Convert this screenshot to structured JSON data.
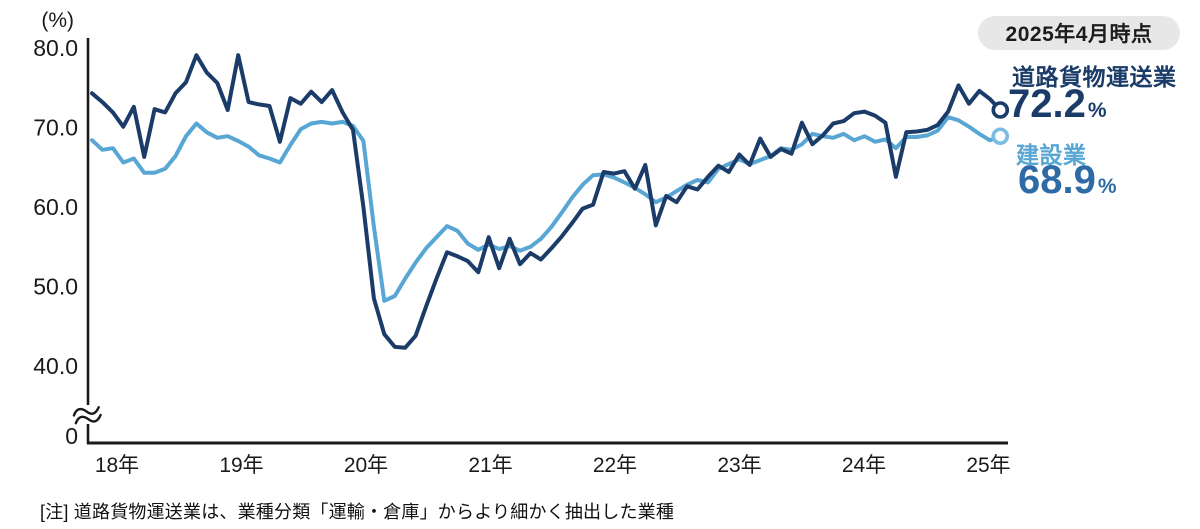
{
  "header": {
    "badge": "2025年4月時点"
  },
  "y_axis_unit": "(%)",
  "legend": [
    {
      "label": "道路貨物運送業",
      "value": "72.2",
      "unit": "%"
    },
    {
      "label": "建設業",
      "value": "68.9",
      "unit": "%"
    }
  ],
  "note": {
    "text": "[注] 道路貨物運送業は、業種分類「運輸・倉庫」からより細かく抽出した業種"
  },
  "colors": {
    "series1": "#1b3c68",
    "series2": "#58a6d4",
    "series2_ring": "#7bbde2",
    "axis": "#1a1a1a",
    "badge_bg": "#e7e7e7"
  },
  "chart_data": {
    "type": "line",
    "title": "",
    "unit": "%",
    "x_interval": "monthly",
    "x_start": "2018-01",
    "x_end": "2025-04",
    "x_tick_labels": [
      "18年",
      "19年",
      "20年",
      "21年",
      "22年",
      "23年",
      "24年",
      "25年"
    ],
    "y_ticks": [
      80.0,
      70.0,
      60.0,
      50.0,
      40.0
    ],
    "y_zero_label": "0",
    "y_axis_break": true,
    "ylim_visible": [
      40,
      80
    ],
    "grid": false,
    "legend_position": "right-of-line-ends",
    "series": [
      {
        "name": "道路貨物運送業",
        "color": "#1b3c68",
        "end_value": 72.2,
        "end_marker": true,
        "values": [
          74.3,
          73.2,
          71.9,
          70.1,
          72.6,
          66.3,
          72.3,
          71.9,
          74.3,
          75.7,
          79.1,
          76.9,
          75.6,
          72.2,
          79.1,
          73.2,
          72.9,
          72.7,
          68.2,
          73.7,
          73.0,
          74.5,
          73.2,
          74.7,
          71.9,
          69.7,
          60.0,
          48.5,
          44.0,
          42.4,
          42.3,
          43.8,
          47.5,
          51.0,
          54.3,
          53.8,
          53.2,
          51.8,
          56.2,
          52.3,
          56.0,
          52.8,
          54.2,
          53.4,
          54.8,
          56.3,
          58.0,
          59.8,
          60.3,
          64.4,
          64.2,
          64.5,
          62.3,
          65.3,
          57.7,
          61.4,
          60.6,
          62.6,
          62.2,
          63.8,
          65.2,
          64.4,
          66.6,
          65.3,
          68.6,
          66.3,
          67.3,
          66.7,
          70.6,
          67.9,
          69.0,
          70.5,
          70.8,
          71.8,
          72.0,
          71.5,
          70.6,
          63.8,
          69.4,
          69.5,
          69.7,
          70.3,
          72.0,
          75.3,
          73.0,
          74.6,
          73.6,
          72.2
        ]
      },
      {
        "name": "建設業",
        "color": "#58a6d4",
        "ring_color": "#7bbde2",
        "end_value": 68.9,
        "end_marker": true,
        "values": [
          68.4,
          67.2,
          67.4,
          65.6,
          66.1,
          64.3,
          64.3,
          64.8,
          66.4,
          68.9,
          70.5,
          69.4,
          68.7,
          68.9,
          68.3,
          67.6,
          66.5,
          66.1,
          65.6,
          67.8,
          69.8,
          70.5,
          70.7,
          70.5,
          70.7,
          70.2,
          68.3,
          57.5,
          48.2,
          48.8,
          51.0,
          53.0,
          54.8,
          56.2,
          57.6,
          57.0,
          55.4,
          54.6,
          55.3,
          54.7,
          55.1,
          54.5,
          55.0,
          56.0,
          57.5,
          59.3,
          61.2,
          62.8,
          64.0,
          64.1,
          63.7,
          63.1,
          62.4,
          61.6,
          60.6,
          61.2,
          62.0,
          62.8,
          63.4,
          63.1,
          64.8,
          65.4,
          66.0,
          65.4,
          65.9,
          66.4,
          67.4,
          67.2,
          67.9,
          69.2,
          68.9,
          68.7,
          69.2,
          68.4,
          68.9,
          68.2,
          68.5,
          67.4,
          68.8,
          68.8,
          69.0,
          69.6,
          71.3,
          70.9,
          70.1,
          69.2,
          68.4,
          68.9
        ]
      }
    ]
  }
}
